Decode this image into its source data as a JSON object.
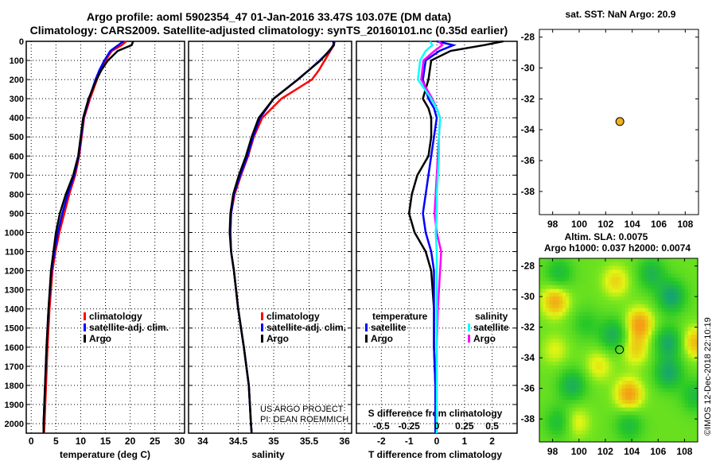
{
  "title_line1": "Argo profile: aoml 5902354_47 01-Jan-2016 33.47S 103.07E (DM data)",
  "title_line2": "Climatology: CARS2009. Satellite-adjusted climatology: synTS_20160101.nc (0.35d earlier)",
  "credit": "US ARGO PROJECT",
  "pi": "PI: DEAN ROEMMICH",
  "stamp": "©IMOS 12-Dec-2018 22:10:19",
  "colors": {
    "climatology": "#ff0000",
    "satellite": "#0000ff",
    "argo": "#000000",
    "sal_satellite": "#00ffff",
    "sal_argo": "#ff00ff"
  },
  "chart_data": [
    {
      "type": "line",
      "name": "temperature-profile",
      "xlabel": "temperature (deg C)",
      "xlim": [
        -1,
        31
      ],
      "xticks": [
        0,
        5,
        10,
        15,
        20,
        25,
        30
      ],
      "ylim": [
        2050,
        0
      ],
      "yticks": [
        0,
        100,
        200,
        300,
        400,
        500,
        600,
        700,
        800,
        900,
        1000,
        1100,
        1200,
        1300,
        1400,
        1500,
        1600,
        1700,
        1800,
        1900,
        2000
      ],
      "grid": true,
      "legend": [
        "climatology",
        "satellite-adj. clim.",
        "Argo"
      ],
      "depth": [
        0,
        20,
        50,
        100,
        150,
        200,
        300,
        400,
        500,
        600,
        700,
        800,
        900,
        1000,
        1100,
        1200,
        1400,
        1600,
        1800,
        2000,
        2050
      ],
      "series": [
        {
          "name": "climatology",
          "values": [
            19.2,
            18.3,
            16.3,
            15.0,
            14.0,
            13.3,
            11.9,
            10.7,
            10.2,
            9.7,
            8.9,
            7.7,
            6.7,
            5.7,
            4.9,
            4.3,
            3.7,
            3.3,
            3.0,
            2.7,
            2.6
          ]
        },
        {
          "name": "satellite-adj. clim.",
          "values": [
            18.6,
            17.6,
            16.0,
            14.8,
            13.8,
            13.0,
            11.7,
            10.6,
            10.1,
            9.6,
            8.7,
            7.4,
            6.3,
            5.4,
            4.7,
            4.1,
            3.5,
            3.1,
            2.8,
            2.5,
            2.5
          ]
        },
        {
          "name": "Argo",
          "values": [
            20.6,
            20.3,
            17.5,
            15.5,
            14.2,
            13.2,
            11.6,
            10.5,
            10.0,
            9.5,
            8.5,
            7.0,
            5.8,
            5.0,
            4.5,
            4.0,
            3.5,
            3.1,
            2.8,
            2.5,
            2.5
          ]
        }
      ]
    },
    {
      "type": "line",
      "name": "salinity-profile",
      "xlabel": "salinity",
      "xlim": [
        33.8,
        36.1
      ],
      "xticks": [
        34,
        34.5,
        35,
        35.5,
        36
      ],
      "ylim": [
        2050,
        0
      ],
      "grid": true,
      "legend": [
        "climatology",
        "satellite-adj. clim.",
        "Argo"
      ],
      "depth": [
        0,
        20,
        50,
        100,
        150,
        200,
        300,
        400,
        500,
        600,
        700,
        800,
        900,
        1000,
        1100,
        1200,
        1400,
        1600,
        1800,
        2000,
        2050
      ],
      "series": [
        {
          "name": "climatology",
          "values": [
            35.86,
            35.85,
            35.8,
            35.72,
            35.64,
            35.54,
            35.11,
            34.84,
            34.72,
            34.64,
            34.54,
            34.45,
            34.4,
            34.39,
            34.4,
            34.44,
            34.5,
            34.58,
            34.65,
            34.68,
            34.69
          ]
        },
        {
          "name": "satellite-adj. clim.",
          "values": [
            35.86,
            35.84,
            35.79,
            35.65,
            35.5,
            35.34,
            35.0,
            34.81,
            34.71,
            34.63,
            34.53,
            34.44,
            34.4,
            34.39,
            34.4,
            34.44,
            34.5,
            34.58,
            34.65,
            34.68,
            34.69
          ]
        },
        {
          "name": "Argo",
          "values": [
            35.84,
            35.85,
            35.78,
            35.66,
            35.5,
            35.34,
            35.0,
            34.79,
            34.69,
            34.61,
            34.51,
            34.43,
            34.39,
            34.38,
            34.4,
            34.44,
            34.5,
            34.58,
            34.65,
            34.68,
            34.69
          ]
        }
      ]
    },
    {
      "type": "line",
      "name": "difference-profile",
      "xlabel": "T difference from climatology",
      "xlim": [
        -2.9,
        2.9
      ],
      "xticks": [
        -2,
        -1,
        0,
        1,
        2
      ],
      "x2label": "S difference from climatology",
      "x2lim": [
        -0.725,
        0.725
      ],
      "x2ticks": [
        -0.5,
        -0.25,
        0,
        0.25,
        0.5
      ],
      "x2ticklabels": [
        "-0.5",
        "-0.25",
        "0",
        "0.25",
        "0.5"
      ],
      "ylim": [
        2050,
        0
      ],
      "grid": true,
      "legend_temperature_title": "temperature",
      "legend_salinity_title": "salinity",
      "depth": [
        0,
        20,
        50,
        100,
        200,
        300,
        350,
        400,
        500,
        600,
        700,
        800,
        900,
        1000,
        1100,
        1200,
        1400,
        1600,
        1800,
        2000,
        2050
      ],
      "series": [
        {
          "name": "satellite",
          "group": "temperature",
          "axis": "T",
          "values": [
            0.0,
            0.6,
            0.1,
            -0.4,
            -0.5,
            -0.3,
            -0.1,
            0.0,
            -0.1,
            -0.2,
            -0.3,
            -0.4,
            -0.5,
            -0.4,
            -0.2,
            -0.1,
            -0.1,
            -0.1,
            -0.05,
            -0.05,
            -0.05
          ]
        },
        {
          "name": "Argo",
          "group": "temperature",
          "axis": "T",
          "values": [
            2.4,
            1.7,
            0.5,
            -0.2,
            -0.3,
            -0.5,
            -0.3,
            -0.2,
            -0.2,
            -0.3,
            -0.7,
            -0.9,
            -1.0,
            -0.8,
            -0.4,
            -0.2,
            -0.1,
            -0.1,
            -0.05,
            -0.05,
            -0.05
          ]
        },
        {
          "name": "satellite",
          "group": "salinity",
          "axis": "S",
          "values": [
            -0.06,
            -0.04,
            -0.1,
            -0.15,
            -0.17,
            -0.05,
            0.0,
            0.03,
            0.02,
            0.02,
            0.01,
            0.0,
            0.0,
            -0.01,
            0.0,
            0.0,
            0.0,
            0.0,
            0.0,
            0.0,
            0.0
          ]
        },
        {
          "name": "Argo",
          "group": "salinity",
          "axis": "S",
          "values": [
            0.02,
            0.05,
            -0.02,
            -0.12,
            -0.14,
            -0.04,
            0.0,
            0.03,
            0.02,
            0.01,
            0.0,
            -0.01,
            -0.02,
            0.0,
            0.04,
            0.03,
            0.01,
            0.0,
            0.0,
            0.0,
            0.0
          ]
        }
      ]
    },
    {
      "type": "scatter",
      "name": "sst-map",
      "title": "sat. SST: NaN Argo: 20.9",
      "xlim": [
        97,
        109
      ],
      "ylim": [
        -39.5,
        -27.5
      ],
      "xticks": [
        98,
        100,
        102,
        104,
        106,
        108
      ],
      "yticks": [
        -28,
        -30,
        -32,
        -34,
        -36,
        -38
      ],
      "points": [
        {
          "lon": 103.07,
          "lat": -33.47,
          "color": "#f0b020"
        }
      ]
    },
    {
      "type": "heatmap",
      "name": "sla-map",
      "title": "Altim. SLA: 0.0075",
      "subtitle": "Argo h1000: 0.037 h2000: 0.0074",
      "xlim": [
        97,
        109
      ],
      "ylim": [
        -39.5,
        -27.5
      ],
      "xticks": [
        98,
        100,
        102,
        104,
        106,
        108
      ],
      "yticks": [
        -28,
        -30,
        -32,
        -34,
        -36,
        -38
      ],
      "points": [
        {
          "lon": 103.07,
          "lat": -33.47
        }
      ],
      "anomalies": [
        {
          "lon": 98.2,
          "lat": -30.3,
          "v": 0.9
        },
        {
          "lon": 102.8,
          "lat": -29.0,
          "v": 0.6
        },
        {
          "lon": 104.6,
          "lat": -31.8,
          "v": 1.0
        },
        {
          "lon": 104.3,
          "lat": -33.5,
          "v": 0.6
        },
        {
          "lon": 103.8,
          "lat": -36.4,
          "v": 1.0
        },
        {
          "lon": 101.5,
          "lat": -34.5,
          "v": 0.5
        },
        {
          "lon": 108.8,
          "lat": -33.0,
          "v": 0.8
        },
        {
          "lon": 99.8,
          "lat": -38.2,
          "v": 0.5
        },
        {
          "lon": 98.2,
          "lat": -33.5,
          "v": 0.4
        },
        {
          "lon": 107.0,
          "lat": -30.0,
          "v": -1.0
        },
        {
          "lon": 106.8,
          "lat": -33.0,
          "v": -0.9
        },
        {
          "lon": 106.8,
          "lat": -35.0,
          "v": -0.9
        },
        {
          "lon": 102.6,
          "lat": -32.5,
          "v": -0.8
        },
        {
          "lon": 99.5,
          "lat": -35.8,
          "v": -0.8
        },
        {
          "lon": 98.5,
          "lat": -28.5,
          "v": -0.6
        },
        {
          "lon": 105.5,
          "lat": -28.5,
          "v": -0.7
        },
        {
          "lon": 103.8,
          "lat": -38.4,
          "v": -0.6
        },
        {
          "lon": 108.8,
          "lat": -36.5,
          "v": -0.6
        },
        {
          "lon": 98.5,
          "lat": -38.2,
          "v": -0.6
        },
        {
          "lon": 100.5,
          "lat": -31.8,
          "v": -0.4
        }
      ]
    }
  ]
}
